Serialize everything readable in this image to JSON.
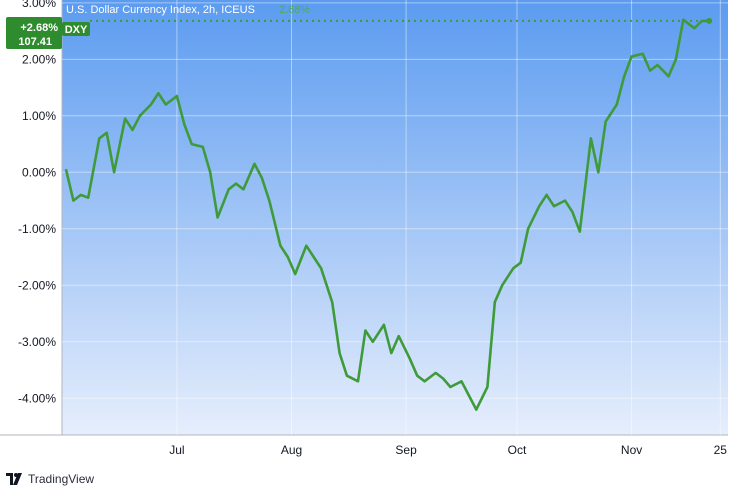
{
  "legend": {
    "title": "U.S. Dollar Currency Index, 2h, ICEUS",
    "value": "2.68%"
  },
  "badge": {
    "percent": "+2.68%",
    "price": "107.41",
    "symbol": "DXY"
  },
  "footer": {
    "brand": "TradingView",
    "logo_icon": "tradingview-logo-icon"
  },
  "colors": {
    "line": "#3f9b3a",
    "badge": "#2e8b2e",
    "gradient_top": "#5b9bf0",
    "gradient_bottom": "#e6eefc",
    "legend_text": "#ffffff",
    "legend_value": "#4caf50"
  },
  "chart_data": {
    "type": "line",
    "title": "U.S. Dollar Currency Index, 2h, ICEUS",
    "series": [
      {
        "name": "DXY",
        "x": [
          "2024-06-01",
          "2024-06-03",
          "2024-06-05",
          "2024-06-07",
          "2024-06-10",
          "2024-06-12",
          "2024-06-14",
          "2024-06-17",
          "2024-06-19",
          "2024-06-21",
          "2024-06-24",
          "2024-06-26",
          "2024-06-28",
          "2024-07-01",
          "2024-07-03",
          "2024-07-05",
          "2024-07-08",
          "2024-07-10",
          "2024-07-12",
          "2024-07-15",
          "2024-07-17",
          "2024-07-19",
          "2024-07-22",
          "2024-07-24",
          "2024-07-26",
          "2024-07-29",
          "2024-07-31",
          "2024-08-02",
          "2024-08-05",
          "2024-08-07",
          "2024-08-09",
          "2024-08-12",
          "2024-08-14",
          "2024-08-16",
          "2024-08-19",
          "2024-08-21",
          "2024-08-23",
          "2024-08-26",
          "2024-08-28",
          "2024-08-30",
          "2024-09-02",
          "2024-09-04",
          "2024-09-06",
          "2024-09-09",
          "2024-09-11",
          "2024-09-13",
          "2024-09-16",
          "2024-09-18",
          "2024-09-20",
          "2024-09-23",
          "2024-09-25",
          "2024-09-27",
          "2024-09-30",
          "2024-10-02",
          "2024-10-04",
          "2024-10-07",
          "2024-10-09",
          "2024-10-11",
          "2024-10-14",
          "2024-10-16",
          "2024-10-18",
          "2024-10-21",
          "2024-10-23",
          "2024-10-25",
          "2024-10-28",
          "2024-10-30",
          "2024-11-01",
          "2024-11-04",
          "2024-11-06",
          "2024-11-08",
          "2024-11-11",
          "2024-11-13",
          "2024-11-15",
          "2024-11-18",
          "2024-11-20",
          "2024-11-22"
        ],
        "y": [
          0.05,
          -0.5,
          -0.4,
          -0.45,
          0.6,
          0.7,
          0.0,
          0.95,
          0.75,
          1.0,
          1.2,
          1.4,
          1.2,
          1.35,
          0.85,
          0.5,
          0.45,
          0.0,
          -0.8,
          -0.3,
          -0.2,
          -0.3,
          0.15,
          -0.1,
          -0.5,
          -1.3,
          -1.5,
          -1.8,
          -1.3,
          -1.5,
          -1.7,
          -2.3,
          -3.2,
          -3.6,
          -3.7,
          -2.8,
          -3.0,
          -2.7,
          -3.2,
          -2.9,
          -3.3,
          -3.6,
          -3.7,
          -3.55,
          -3.65,
          -3.8,
          -3.7,
          -3.95,
          -4.2,
          -3.8,
          -2.3,
          -2.0,
          -1.7,
          -1.6,
          -1.0,
          -0.6,
          -0.4,
          -0.6,
          -0.5,
          -0.7,
          -1.05,
          0.6,
          0.0,
          0.9,
          1.2,
          1.7,
          2.05,
          2.1,
          1.8,
          1.9,
          1.7,
          2.0,
          2.7,
          2.55,
          2.68,
          2.68
        ]
      }
    ],
    "xlabel": "",
    "ylabel": "",
    "x_ticks": [
      "Jul",
      "Aug",
      "Sep",
      "Oct",
      "Nov",
      "25"
    ],
    "x_tick_dates": [
      "2024-07-01",
      "2024-08-01",
      "2024-09-01",
      "2024-10-01",
      "2024-11-01",
      "2024-11-25"
    ],
    "y_ticks": [
      "3.00%",
      "2.00%",
      "1.00%",
      "0.00%",
      "-1.00%",
      "-2.00%",
      "-3.00%",
      "-4.00%"
    ],
    "y_tick_values": [
      3,
      2,
      1,
      0,
      -1,
      -2,
      -3,
      -4
    ],
    "ylim": [
      -4.65,
      3.05
    ],
    "xlim": [
      "2024-06-01",
      "2024-11-26"
    ],
    "grid": true,
    "last_value_line": "dotted",
    "y_axis_position": "left"
  }
}
